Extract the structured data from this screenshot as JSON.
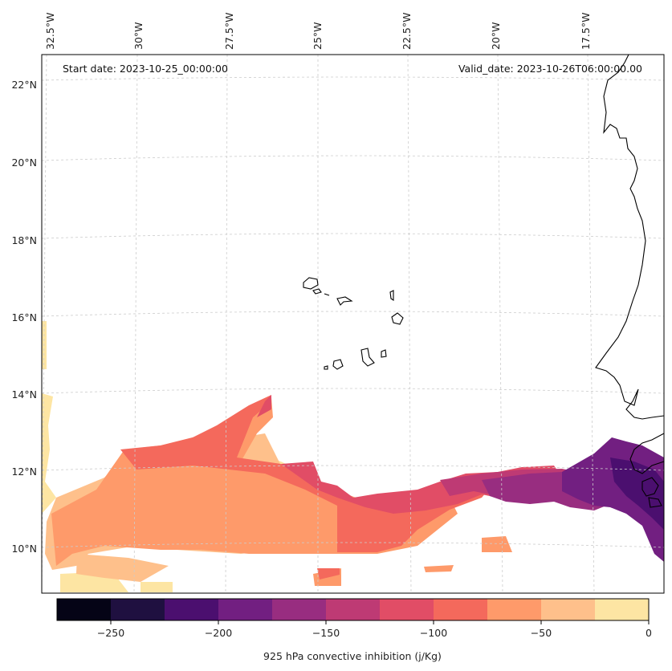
{
  "titles": {
    "start": "Start date: 2023-10-25_00:00:00",
    "valid": "Valid_date: 2023-10-26T06:00:00.00"
  },
  "lon_labels": [
    "32.5°W",
    "30°W",
    "27.5°W",
    "25°W",
    "22.5°W",
    "20°W",
    "17.5°W"
  ],
  "lat_labels": [
    "22°N",
    "20°N",
    "18°N",
    "16°N",
    "14°N",
    "12°N",
    "10°N"
  ],
  "colorbar": {
    "label": "925 hPa convective inhibition (j/Kg)",
    "ticks": [
      "−250",
      "−200",
      "−150",
      "−100",
      "−50",
      "0"
    ],
    "levels": [
      -275,
      -250,
      -225,
      -200,
      -175,
      -150,
      -125,
      -100,
      -75,
      -50,
      -25,
      0
    ],
    "colors": [
      "#050416",
      "#1f1040",
      "#4b0f6f",
      "#721f81",
      "#982d80",
      "#be3a74",
      "#e14d66",
      "#f4695c",
      "#fe9a6a",
      "#fec08b",
      "#fde5a3"
    ]
  },
  "map": {
    "projection": "lambert-conic",
    "extent_lon": [
      -32.5,
      -15.5
    ],
    "extent_lat": [
      9,
      22.5
    ],
    "grid": true,
    "variable": "925 hPa convective inhibition"
  }
}
